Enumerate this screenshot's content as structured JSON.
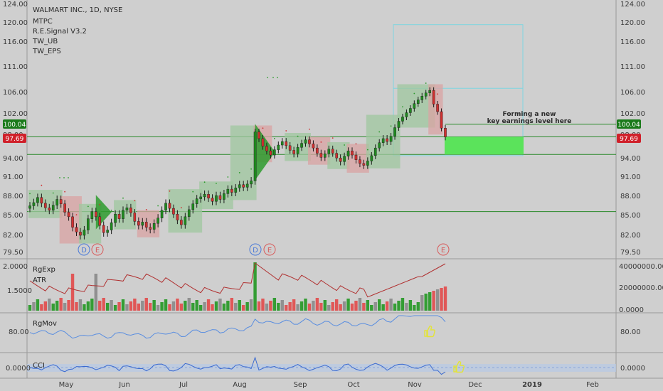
{
  "header": {
    "title": "WALMART INC., 1D, NYSE",
    "studies": [
      "MTPC",
      "R.E.Signal V3.2",
      "TW_UB",
      "TW_EPS"
    ]
  },
  "annotation": {
    "line1": "Forming a new",
    "line2": "key earnings level here"
  },
  "price_tags": {
    "upper": "100.04",
    "lower": "97.69",
    "upper_color": "#1a7a1a",
    "lower_color": "#d0202a"
  },
  "colors": {
    "background": "#cfcfcf",
    "up": "#1e8a1e",
    "down": "#d03030",
    "level_line": "#2a8a2a",
    "earnings_zone": "#5be35b",
    "projection_box": "#7fd6e0",
    "indicator_line": "#5a8ee0",
    "atr_line": "#b03030"
  },
  "event_markers": [
    {
      "label": "D",
      "kind": "dividend",
      "color": "#4a7ad8"
    },
    {
      "label": "E",
      "kind": "earnings",
      "color": "#d85a5a"
    },
    {
      "label": "D",
      "kind": "dividend",
      "color": "#4a7ad8"
    },
    {
      "label": "E",
      "kind": "earnings",
      "color": "#d85a5a"
    },
    {
      "label": "E",
      "kind": "earnings",
      "color": "#d85a5a"
    }
  ],
  "indicators": {
    "rgexp": {
      "name": "RgExp",
      "sub": "ATR",
      "left_ticks": [
        "2.0000",
        "1.5000"
      ],
      "right_ticks": [
        "40000000.0000",
        "20000000.0000",
        "0.0000"
      ]
    },
    "rgmov": {
      "name": "RgMov",
      "left_ticks": [
        "80.00"
      ],
      "right_ticks": [
        "80.00"
      ]
    },
    "cci": {
      "name": "CCI",
      "left_ticks": [
        "0.0000"
      ],
      "right_ticks": [
        "0.0000"
      ]
    }
  },
  "chart_data": {
    "type": "candlestick",
    "title": "WALMART INC., 1D, NYSE",
    "price_axis_ticks": [
      124.0,
      120.0,
      116.0,
      111.0,
      106.0,
      102.0,
      98.0,
      94.0,
      91.0,
      88.0,
      85.0,
      82.0,
      79.5
    ],
    "price_axis_labels": [
      "124.00",
      "120.00",
      "116.00",
      "111.00",
      "106.00",
      "102.00",
      "98.00",
      "94.00",
      "91.00",
      "88.00",
      "85.00",
      "82.00",
      "79.50"
    ],
    "x_axis_labels": [
      "May",
      "Jun",
      "Jul",
      "Aug",
      "Sep",
      "Oct",
      "Nov",
      "Dec",
      "2019",
      "Feb"
    ],
    "horizontal_levels": [
      97.69,
      94.7,
      85.6
    ],
    "approx_close_path": [
      86.5,
      87.0,
      87.8,
      86.9,
      86.2,
      85.8,
      86.6,
      87.5,
      86.8,
      85.5,
      84.8,
      83.2,
      82.5,
      82.0,
      82.8,
      84.5,
      85.6,
      84.8,
      83.5,
      82.4,
      82.8,
      83.9,
      85.2,
      84.5,
      85.8,
      86.2,
      85.4,
      84.1,
      83.5,
      84.0,
      83.2,
      82.9,
      83.8,
      84.6,
      85.8,
      86.9,
      86.1,
      85.2,
      84.3,
      83.6,
      84.8,
      85.9,
      86.8,
      87.6,
      87.9,
      88.3,
      87.7,
      87.2,
      88.1,
      87.5,
      88.4,
      89.1,
      88.6,
      89.3,
      89.8,
      89.4,
      89.9,
      90.4,
      98.6,
      97.4,
      96.1,
      95.3,
      94.6,
      95.5,
      96.3,
      96.9,
      96.2,
      95.4,
      94.8,
      95.9,
      96.6,
      97.2,
      96.5,
      95.8,
      94.9,
      94.2,
      94.8,
      95.6,
      94.9,
      94.1,
      93.5,
      94.4,
      95.3,
      94.6,
      93.8,
      93.2,
      92.9,
      93.6,
      94.5,
      95.8,
      96.7,
      97.4,
      96.9,
      97.8,
      99.4,
      100.6,
      101.4,
      102.2,
      103.0,
      103.9,
      104.6,
      105.3,
      105.9,
      106.4,
      103.8,
      102.4,
      99.3,
      97.7
    ],
    "projection_box": {
      "price_top": 119.6,
      "price_bottom": 94.5,
      "inner_line": 106.8
    },
    "earnings_zone": {
      "price_top": 97.69,
      "price_bottom": 94.7
    }
  }
}
